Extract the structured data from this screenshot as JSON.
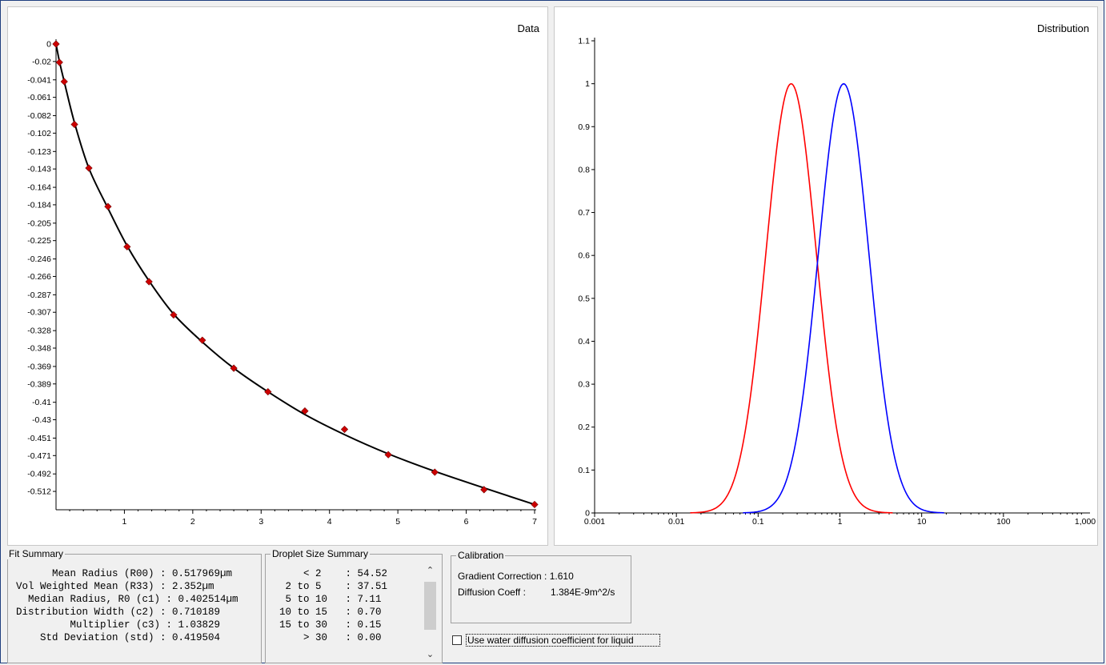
{
  "chart_data": [
    {
      "type": "scatter",
      "title": "Data",
      "xlim": [
        0,
        7
      ],
      "ylim": [
        -0.533,
        0
      ],
      "x_ticks": [
        "1",
        "2",
        "3",
        "4",
        "5",
        "6",
        "7"
      ],
      "y_ticks": [
        "0",
        "-0.02",
        "-0.041",
        "-0.061",
        "-0.082",
        "-0.102",
        "-0.123",
        "-0.143",
        "-0.164",
        "-0.184",
        "-0.205",
        "-0.225",
        "-0.246",
        "-0.266",
        "-0.287",
        "-0.307",
        "-0.328",
        "-0.348",
        "-0.369",
        "-0.389",
        "-0.41",
        "-0.43",
        "-0.451",
        "-0.471",
        "-0.492",
        "-0.512"
      ],
      "points": {
        "x": [
          0.0,
          0.05,
          0.12,
          0.27,
          0.48,
          0.76,
          1.04,
          1.36,
          1.72,
          2.14,
          2.6,
          3.1,
          3.64,
          4.22,
          4.86,
          5.54,
          6.26,
          7.0
        ],
        "y": [
          0.0,
          -0.021,
          -0.043,
          -0.092,
          -0.142,
          -0.186,
          -0.232,
          -0.272,
          -0.31,
          -0.339,
          -0.371,
          -0.398,
          -0.42,
          -0.441,
          -0.47,
          -0.49,
          -0.51,
          -0.527
        ]
      },
      "fit_curve": {
        "x": [
          0.0,
          0.05,
          0.12,
          0.27,
          0.48,
          0.76,
          1.04,
          1.36,
          1.72,
          2.14,
          2.6,
          3.1,
          3.64,
          4.22,
          4.86,
          5.54,
          6.26,
          7.0
        ],
        "y": [
          0.0,
          -0.02,
          -0.043,
          -0.09,
          -0.142,
          -0.188,
          -0.231,
          -0.271,
          -0.309,
          -0.341,
          -0.371,
          -0.398,
          -0.424,
          -0.447,
          -0.469,
          -0.489,
          -0.508,
          -0.527
        ]
      },
      "colors": {
        "points": "#cc0000",
        "curve": "#000000"
      }
    },
    {
      "type": "line",
      "title": "Distribution",
      "xscale": "log",
      "xlim": [
        0.001,
        1000
      ],
      "ylim": [
        0,
        1.1
      ],
      "x_ticks": [
        "0.001",
        "0.01",
        "0.1",
        "1",
        "10",
        "100",
        "1,000"
      ],
      "y_ticks": [
        "0",
        "0.1",
        "0.2",
        "0.3",
        "0.4",
        "0.5",
        "0.6",
        "0.7",
        "0.8",
        "0.9",
        "1",
        "1.1"
      ],
      "series": [
        {
          "color": "#ff0000",
          "lognormal": {
            "median": 0.2533,
            "sigma": 0.710189
          }
        },
        {
          "color": "#0000ff",
          "lognormal": {
            "median": 1.1111,
            "sigma": 0.710189
          }
        }
      ]
    }
  ],
  "fit_summary": {
    "title": "Fit Summary",
    "lines": [
      "      Mean Radius (R00) : 0.517969µm",
      "Vol Weighted Mean (R33) : 2.352µm",
      "  Median Radius, R0 (c1) : 0.402514µm",
      "Distribution Width (c2) : 0.710189",
      "         Multiplier (c3) : 1.03829",
      "    Std Deviation (std) : 0.419504"
    ]
  },
  "droplet_summary": {
    "title": "Droplet Size Summary",
    "lines": [
      "      < 2    : 54.52",
      "   2 to 5    : 37.51",
      "   5 to 10   : 7.11",
      "  10 to 15   : 0.70",
      "  15 to 30   : 0.15",
      "      > 30   : 0.00"
    ]
  },
  "calibration": {
    "title": "Calibration",
    "gradient_label": "Gradient Correction : 1.610",
    "diffusion_label": "Diffusion Coeff :",
    "diffusion_value": "1.384E-9m^2/s"
  },
  "water_checkbox": {
    "label": "Use water diffusion coefficient for liquid",
    "checked": false
  }
}
